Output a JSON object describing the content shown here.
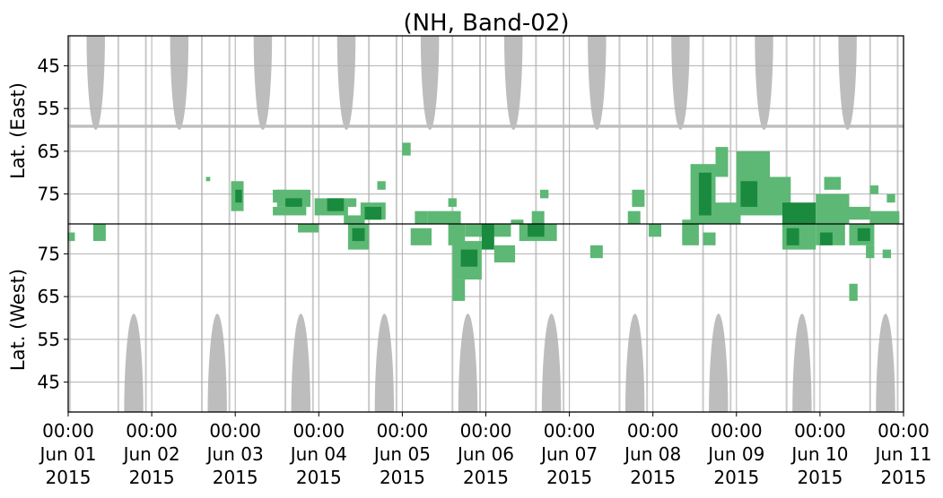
{
  "chart_data": {
    "type": "heatmap",
    "title": "(NH, Band-02)",
    "ylabel_top": "Lat. (East)",
    "ylabel_bottom": "Lat. (West)",
    "xlim": [
      0,
      10
    ],
    "x_ticks": [
      {
        "x": 0,
        "l1": "00:00",
        "l2": "Jun 01",
        "l3": "2015"
      },
      {
        "x": 1,
        "l1": "00:00",
        "l2": "Jun 02",
        "l3": "2015"
      },
      {
        "x": 2,
        "l1": "00:00",
        "l2": "Jun 03",
        "l3": "2015"
      },
      {
        "x": 3,
        "l1": "00:00",
        "l2": "Jun 04",
        "l3": "2015"
      },
      {
        "x": 4,
        "l1": "00:00",
        "l2": "Jun 05",
        "l3": "2015"
      },
      {
        "x": 5,
        "l1": "00:00",
        "l2": "Jun 06",
        "l3": "2015"
      },
      {
        "x": 6,
        "l1": "00:00",
        "l2": "Jun 07",
        "l3": "2015"
      },
      {
        "x": 7,
        "l1": "00:00",
        "l2": "Jun 08",
        "l3": "2015"
      },
      {
        "x": 8,
        "l1": "00:00",
        "l2": "Jun 09",
        "l3": "2015"
      },
      {
        "x": 9,
        "l1": "00:00",
        "l2": "Jun 10",
        "l3": "2015"
      },
      {
        "x": 10,
        "l1": "00:00",
        "l2": "Jun 11",
        "l3": "2015"
      }
    ],
    "y_ticks_top": [
      45,
      55,
      65,
      75
    ],
    "y_ticks_bottom": [
      75,
      65,
      55,
      45
    ],
    "lat_range": [
      38,
      82
    ],
    "colors": {
      "gray": "#bdbdbd",
      "green_light": "#5cb874",
      "green_dark": "#1a8a3e",
      "grid": "#b0b0b0"
    },
    "gray_east": [
      {
        "x0": 0.22,
        "x1": 0.44,
        "minLat": 60
      },
      {
        "x0": 1.22,
        "x1": 1.44,
        "minLat": 60
      },
      {
        "x0": 2.22,
        "x1": 2.44,
        "minLat": 60
      },
      {
        "x0": 3.22,
        "x1": 3.44,
        "minLat": 60
      },
      {
        "x0": 4.22,
        "x1": 4.44,
        "minLat": 60
      },
      {
        "x0": 5.22,
        "x1": 5.44,
        "minLat": 60
      },
      {
        "x0": 6.22,
        "x1": 6.44,
        "minLat": 60
      },
      {
        "x0": 7.22,
        "x1": 7.44,
        "minLat": 60
      },
      {
        "x0": 8.22,
        "x1": 8.44,
        "minLat": 60
      },
      {
        "x0": 9.22,
        "x1": 9.44,
        "minLat": 60
      }
    ],
    "gray_west": [
      {
        "x0": 0.67,
        "x1": 0.9,
        "maxLat": 61
      },
      {
        "x0": 1.67,
        "x1": 1.9,
        "maxLat": 61
      },
      {
        "x0": 2.67,
        "x1": 2.9,
        "maxLat": 61
      },
      {
        "x0": 3.67,
        "x1": 3.9,
        "maxLat": 61
      },
      {
        "x0": 4.67,
        "x1": 4.9,
        "maxLat": 61
      },
      {
        "x0": 5.67,
        "x1": 5.9,
        "maxLat": 61
      },
      {
        "x0": 6.67,
        "x1": 6.9,
        "maxLat": 61
      },
      {
        "x0": 7.67,
        "x1": 7.9,
        "maxLat": 61
      },
      {
        "x0": 8.67,
        "x1": 8.9,
        "maxLat": 61
      },
      {
        "x0": 9.67,
        "x1": 9.9,
        "maxLat": 61
      }
    ],
    "gray_band_east": {
      "lat0": 58.8,
      "lat1": 59.5
    },
    "gray_columns": [
      0.02,
      0.6,
      0.93,
      1.6,
      1.93,
      2.6,
      2.93,
      3.6,
      3.93,
      4.6,
      4.93,
      5.6,
      5.93,
      6.6,
      6.93,
      7.6,
      7.93,
      8.6,
      8.93,
      9.6,
      9.93
    ],
    "green_east": [
      {
        "x0": 1.65,
        "x1": 1.7,
        "lat0": 71,
        "lat1": 72,
        "s": 1
      },
      {
        "x0": 1.95,
        "x1": 2.1,
        "lat0": 72,
        "lat1": 79,
        "s": 1
      },
      {
        "x0": 2.0,
        "x1": 2.08,
        "lat0": 74,
        "lat1": 77,
        "s": 2
      },
      {
        "x0": 2.45,
        "x1": 2.6,
        "lat0": 74,
        "lat1": 77,
        "s": 1
      },
      {
        "x0": 2.5,
        "x1": 2.9,
        "lat0": 74,
        "lat1": 78,
        "s": 1
      },
      {
        "x0": 2.45,
        "x1": 2.85,
        "lat0": 78,
        "lat1": 80,
        "s": 1
      },
      {
        "x0": 2.6,
        "x1": 2.8,
        "lat0": 76,
        "lat1": 78,
        "s": 2
      },
      {
        "x0": 2.95,
        "x1": 3.35,
        "lat0": 76,
        "lat1": 80,
        "s": 1
      },
      {
        "x0": 3.1,
        "x1": 3.3,
        "lat0": 76,
        "lat1": 79,
        "s": 2
      },
      {
        "x0": 3.3,
        "x1": 3.55,
        "lat0": 80,
        "lat1": 82,
        "s": 1
      },
      {
        "x0": 3.35,
        "x1": 3.45,
        "lat0": 76,
        "lat1": 78,
        "s": 1
      },
      {
        "x0": 3.5,
        "x1": 3.8,
        "lat0": 77,
        "lat1": 81,
        "s": 1
      },
      {
        "x0": 3.55,
        "x1": 3.75,
        "lat0": 78,
        "lat1": 81,
        "s": 2
      },
      {
        "x0": 3.7,
        "x1": 3.8,
        "lat0": 72,
        "lat1": 74,
        "s": 1
      },
      {
        "x0": 4.0,
        "x1": 4.1,
        "lat0": 63,
        "lat1": 66,
        "s": 1
      },
      {
        "x0": 4.15,
        "x1": 4.3,
        "lat0": 79,
        "lat1": 82,
        "s": 1
      },
      {
        "x0": 4.3,
        "x1": 4.7,
        "lat0": 79,
        "lat1": 82,
        "s": 1
      },
      {
        "x0": 4.55,
        "x1": 4.65,
        "lat0": 76,
        "lat1": 78,
        "s": 1
      },
      {
        "x0": 5.3,
        "x1": 5.45,
        "lat0": 81,
        "lat1": 82,
        "s": 1
      },
      {
        "x0": 5.55,
        "x1": 5.7,
        "lat0": 79,
        "lat1": 82,
        "s": 1
      },
      {
        "x0": 5.65,
        "x1": 5.75,
        "lat0": 74,
        "lat1": 76,
        "s": 1
      },
      {
        "x0": 6.7,
        "x1": 6.85,
        "lat0": 79,
        "lat1": 82,
        "s": 1
      },
      {
        "x0": 6.75,
        "x1": 6.9,
        "lat0": 74,
        "lat1": 78,
        "s": 1
      },
      {
        "x0": 7.35,
        "x1": 7.5,
        "lat0": 81,
        "lat1": 82,
        "s": 1
      },
      {
        "x0": 7.45,
        "x1": 7.75,
        "lat0": 68,
        "lat1": 82,
        "s": 1
      },
      {
        "x0": 7.55,
        "x1": 7.7,
        "lat0": 70,
        "lat1": 80,
        "s": 2
      },
      {
        "x0": 7.7,
        "x1": 8.05,
        "lat0": 77,
        "lat1": 82,
        "s": 1
      },
      {
        "x0": 7.75,
        "x1": 7.9,
        "lat0": 64,
        "lat1": 71,
        "s": 1
      },
      {
        "x0": 8.0,
        "x1": 8.4,
        "lat0": 65,
        "lat1": 80,
        "s": 1
      },
      {
        "x0": 8.05,
        "x1": 8.25,
        "lat0": 72,
        "lat1": 78,
        "s": 2
      },
      {
        "x0": 8.35,
        "x1": 8.65,
        "lat0": 71,
        "lat1": 80,
        "s": 1
      },
      {
        "x0": 8.55,
        "x1": 8.95,
        "lat0": 77,
        "lat1": 82,
        "s": 2
      },
      {
        "x0": 8.95,
        "x1": 9.35,
        "lat0": 75,
        "lat1": 82,
        "s": 1
      },
      {
        "x0": 9.05,
        "x1": 9.25,
        "lat0": 71,
        "lat1": 74,
        "s": 1
      },
      {
        "x0": 9.3,
        "x1": 9.6,
        "lat0": 78,
        "lat1": 81,
        "s": 1
      },
      {
        "x0": 9.6,
        "x1": 9.95,
        "lat0": 79,
        "lat1": 82,
        "s": 1
      },
      {
        "x0": 9.6,
        "x1": 9.7,
        "lat0": 73,
        "lat1": 75,
        "s": 1
      },
      {
        "x0": 9.8,
        "x1": 9.9,
        "lat0": 75,
        "lat1": 77,
        "s": 1
      }
    ],
    "green_west": [
      {
        "x0": 0.0,
        "x1": 0.08,
        "lat0": 78,
        "lat1": 80,
        "s": 1
      },
      {
        "x0": 0.3,
        "x1": 0.45,
        "lat0": 78,
        "lat1": 82,
        "s": 1
      },
      {
        "x0": 2.75,
        "x1": 3.0,
        "lat0": 80,
        "lat1": 82,
        "s": 1
      },
      {
        "x0": 3.35,
        "x1": 3.6,
        "lat0": 76,
        "lat1": 82,
        "s": 1
      },
      {
        "x0": 3.4,
        "x1": 3.55,
        "lat0": 78,
        "lat1": 81,
        "s": 2
      },
      {
        "x0": 4.1,
        "x1": 4.35,
        "lat0": 77,
        "lat1": 81,
        "s": 1
      },
      {
        "x0": 4.55,
        "x1": 4.75,
        "lat0": 77,
        "lat1": 82,
        "s": 1
      },
      {
        "x0": 4.6,
        "x1": 4.95,
        "lat0": 69,
        "lat1": 78,
        "s": 1
      },
      {
        "x0": 4.7,
        "x1": 4.9,
        "lat0": 72,
        "lat1": 76,
        "s": 2
      },
      {
        "x0": 4.6,
        "x1": 4.75,
        "lat0": 64,
        "lat1": 69,
        "s": 1
      },
      {
        "x0": 4.75,
        "x1": 5.3,
        "lat0": 79,
        "lat1": 82,
        "s": 1
      },
      {
        "x0": 4.95,
        "x1": 5.1,
        "lat0": 76,
        "lat1": 82,
        "s": 2
      },
      {
        "x0": 5.1,
        "x1": 5.35,
        "lat0": 73,
        "lat1": 77,
        "s": 1
      },
      {
        "x0": 5.4,
        "x1": 5.85,
        "lat0": 78,
        "lat1": 82,
        "s": 1
      },
      {
        "x0": 5.5,
        "x1": 5.7,
        "lat0": 79,
        "lat1": 82,
        "s": 2
      },
      {
        "x0": 6.25,
        "x1": 6.4,
        "lat0": 74,
        "lat1": 77,
        "s": 1
      },
      {
        "x0": 6.95,
        "x1": 7.1,
        "lat0": 79,
        "lat1": 82,
        "s": 1
      },
      {
        "x0": 7.35,
        "x1": 7.55,
        "lat0": 77,
        "lat1": 82,
        "s": 1
      },
      {
        "x0": 7.6,
        "x1": 7.75,
        "lat0": 77,
        "lat1": 80,
        "s": 1
      },
      {
        "x0": 8.55,
        "x1": 8.95,
        "lat0": 76,
        "lat1": 82,
        "s": 1
      },
      {
        "x0": 8.6,
        "x1": 8.75,
        "lat0": 77,
        "lat1": 81,
        "s": 2
      },
      {
        "x0": 8.95,
        "x1": 9.3,
        "lat0": 77,
        "lat1": 82,
        "s": 1
      },
      {
        "x0": 9.0,
        "x1": 9.15,
        "lat0": 77,
        "lat1": 80,
        "s": 2
      },
      {
        "x0": 9.35,
        "x1": 9.65,
        "lat0": 77,
        "lat1": 82,
        "s": 1
      },
      {
        "x0": 9.45,
        "x1": 9.6,
        "lat0": 78,
        "lat1": 81,
        "s": 2
      },
      {
        "x0": 9.55,
        "x1": 9.65,
        "lat0": 74,
        "lat1": 77,
        "s": 1
      },
      {
        "x0": 9.75,
        "x1": 9.85,
        "lat0": 74,
        "lat1": 76,
        "s": 1
      },
      {
        "x0": 9.35,
        "x1": 9.45,
        "lat0": 64,
        "lat1": 68,
        "s": 1
      }
    ]
  }
}
